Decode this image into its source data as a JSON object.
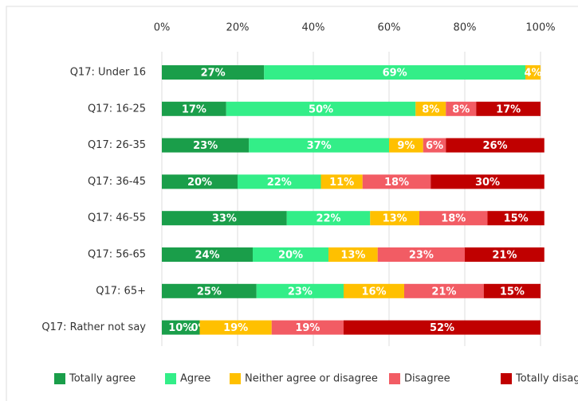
{
  "chart_data": {
    "type": "stacked-bar-horizontal",
    "categories": [
      "Q17: Under 16",
      "Q17: 16-25",
      "Q17: 26-35",
      "Q17: 36-45",
      "Q17: 46-55",
      "Q17: 56-65",
      "Q17: 65+",
      "Q17: Rather not say"
    ],
    "series": [
      {
        "name": "Totally agree",
        "color": "#1a9e4a",
        "values": [
          27,
          17,
          23,
          20,
          33,
          24,
          25,
          10
        ],
        "value_labels": [
          "27%",
          "17%",
          "23%",
          "20%",
          "33%",
          "24%",
          "25%",
          "10%"
        ]
      },
      {
        "name": "Agree",
        "color": "#33ee88",
        "values": [
          69,
          50,
          37,
          22,
          22,
          20,
          23,
          0
        ],
        "value_labels": [
          "69%",
          "50%",
          "37%",
          "22%",
          "22%",
          "20%",
          "23%",
          "0%"
        ]
      },
      {
        "name": "Neither agree or disagree",
        "color": "#ffc000",
        "values": [
          4,
          8,
          9,
          11,
          13,
          13,
          16,
          19
        ],
        "value_labels": [
          "4%",
          "8%",
          "9%",
          "11%",
          "13%",
          "13%",
          "16%",
          "19%"
        ]
      },
      {
        "name": "Disagree",
        "color": "#f25c64",
        "values": [
          null,
          8,
          6,
          18,
          18,
          23,
          21,
          19
        ],
        "value_labels": [
          null,
          "8%",
          "6%",
          "18%",
          "18%",
          "23%",
          "21%",
          "19%"
        ]
      },
      {
        "name": "Totally disagree",
        "color": "#c00000",
        "values": [
          null,
          17,
          26,
          30,
          15,
          21,
          15,
          52
        ],
        "value_labels": [
          null,
          "17%",
          "26%",
          "30%",
          "15%",
          "21%",
          "15%",
          "52%"
        ]
      }
    ],
    "xlim": [
      0,
      100
    ],
    "xticks": [
      {
        "value": 0,
        "label": "0%"
      },
      {
        "value": 20,
        "label": "20%"
      },
      {
        "value": 40,
        "label": "40%"
      },
      {
        "value": 60,
        "label": "60%"
      },
      {
        "value": 80,
        "label": "80%"
      },
      {
        "value": 100,
        "label": "100%"
      }
    ],
    "grid": true,
    "legend": "bottom"
  }
}
